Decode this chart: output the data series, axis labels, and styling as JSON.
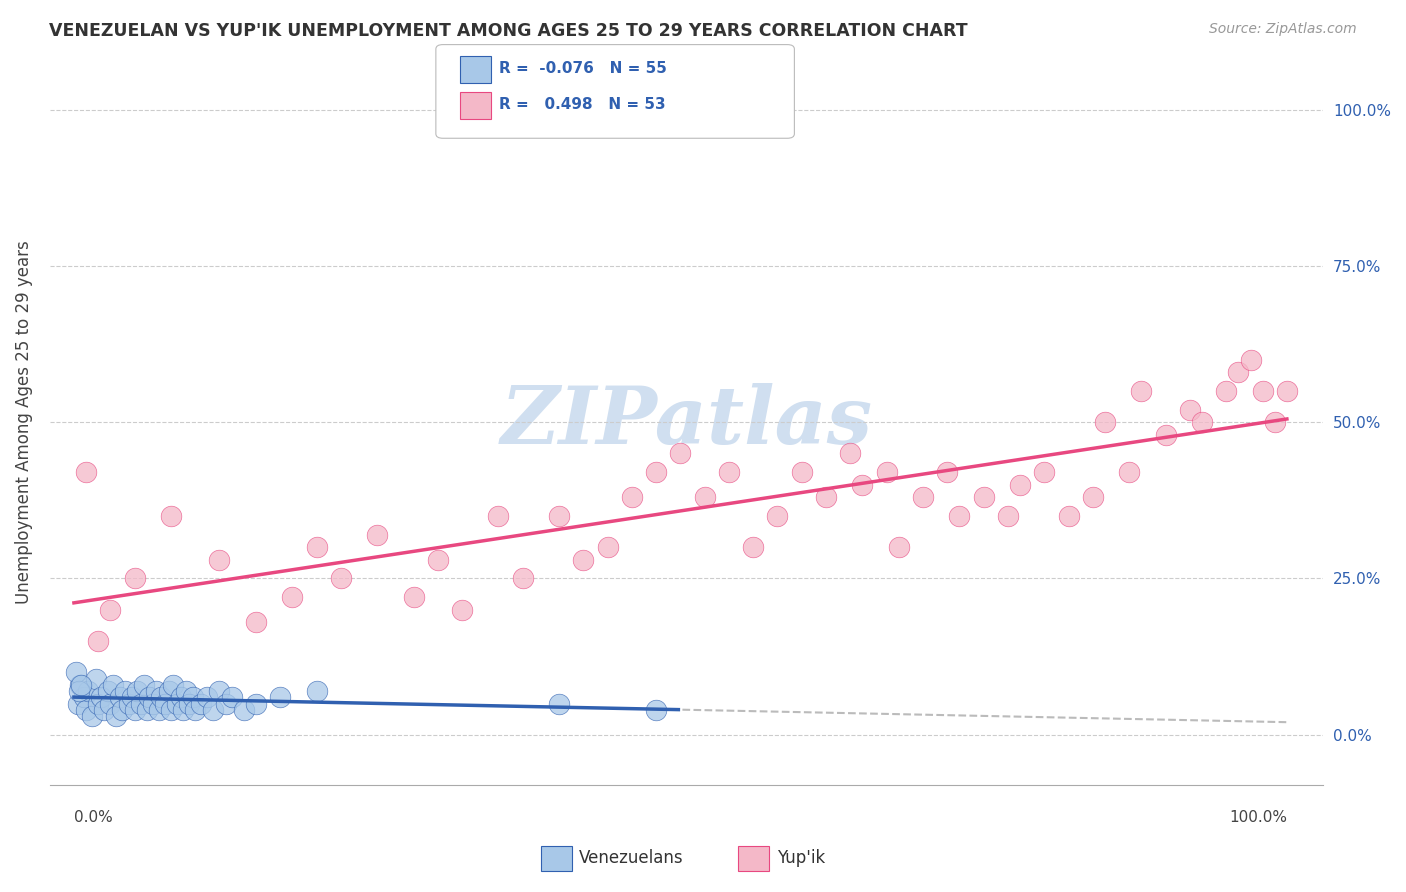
{
  "title": "VENEZUELAN VS YUP'IK UNEMPLOYMENT AMONG AGES 25 TO 29 YEARS CORRELATION CHART",
  "source": "Source: ZipAtlas.com",
  "ylabel": "Unemployment Among Ages 25 to 29 years",
  "legend_r1": "R =  -0.076",
  "legend_n1": "N = 55",
  "legend_r2": "R =   0.498",
  "legend_n2": "N = 53",
  "blue_color": "#a8c8e8",
  "pink_color": "#f4b8c8",
  "blue_line_color": "#3060b0",
  "pink_line_color": "#e84880",
  "legend_text_color": "#3060b0",
  "watermark_color": "#d0dff0",
  "venezuelan_x": [
    0.3,
    0.5,
    0.8,
    1.0,
    1.2,
    1.5,
    1.8,
    2.0,
    2.2,
    2.5,
    2.8,
    3.0,
    3.2,
    3.5,
    3.8,
    4.0,
    4.2,
    4.5,
    4.8,
    5.0,
    5.2,
    5.5,
    5.8,
    6.0,
    6.2,
    6.5,
    6.8,
    7.0,
    7.2,
    7.5,
    7.8,
    8.0,
    8.2,
    8.5,
    8.8,
    9.0,
    9.2,
    9.5,
    9.8,
    10.0,
    10.5,
    11.0,
    11.5,
    12.0,
    12.5,
    13.0,
    14.0,
    15.0,
    17.0,
    20.0,
    40.0,
    48.0,
    0.2,
    0.4,
    0.6
  ],
  "venezuelan_y": [
    5.0,
    8.0,
    6.0,
    4.0,
    7.0,
    3.0,
    9.0,
    5.0,
    6.0,
    4.0,
    7.0,
    5.0,
    8.0,
    3.0,
    6.0,
    4.0,
    7.0,
    5.0,
    6.0,
    4.0,
    7.0,
    5.0,
    8.0,
    4.0,
    6.0,
    5.0,
    7.0,
    4.0,
    6.0,
    5.0,
    7.0,
    4.0,
    8.0,
    5.0,
    6.0,
    4.0,
    7.0,
    5.0,
    6.0,
    4.0,
    5.0,
    6.0,
    4.0,
    7.0,
    5.0,
    6.0,
    4.0,
    5.0,
    6.0,
    7.0,
    5.0,
    4.0,
    10.0,
    7.0,
    8.0
  ],
  "yupik_x": [
    1.0,
    3.0,
    5.0,
    8.0,
    12.0,
    15.0,
    18.0,
    20.0,
    22.0,
    25.0,
    28.0,
    30.0,
    32.0,
    35.0,
    37.0,
    40.0,
    42.0,
    44.0,
    46.0,
    48.0,
    50.0,
    52.0,
    54.0,
    56.0,
    58.0,
    60.0,
    62.0,
    64.0,
    65.0,
    67.0,
    68.0,
    70.0,
    72.0,
    73.0,
    75.0,
    77.0,
    78.0,
    80.0,
    82.0,
    84.0,
    85.0,
    87.0,
    88.0,
    90.0,
    92.0,
    93.0,
    95.0,
    96.0,
    97.0,
    98.0,
    99.0,
    100.0,
    2.0
  ],
  "yupik_y": [
    42.0,
    20.0,
    25.0,
    35.0,
    28.0,
    18.0,
    22.0,
    30.0,
    25.0,
    32.0,
    22.0,
    28.0,
    20.0,
    35.0,
    25.0,
    35.0,
    28.0,
    30.0,
    38.0,
    42.0,
    45.0,
    38.0,
    42.0,
    30.0,
    35.0,
    42.0,
    38.0,
    45.0,
    40.0,
    42.0,
    30.0,
    38.0,
    42.0,
    35.0,
    38.0,
    35.0,
    40.0,
    42.0,
    35.0,
    38.0,
    50.0,
    42.0,
    55.0,
    48.0,
    52.0,
    50.0,
    55.0,
    58.0,
    60.0,
    55.0,
    50.0,
    55.0,
    15.0
  ]
}
